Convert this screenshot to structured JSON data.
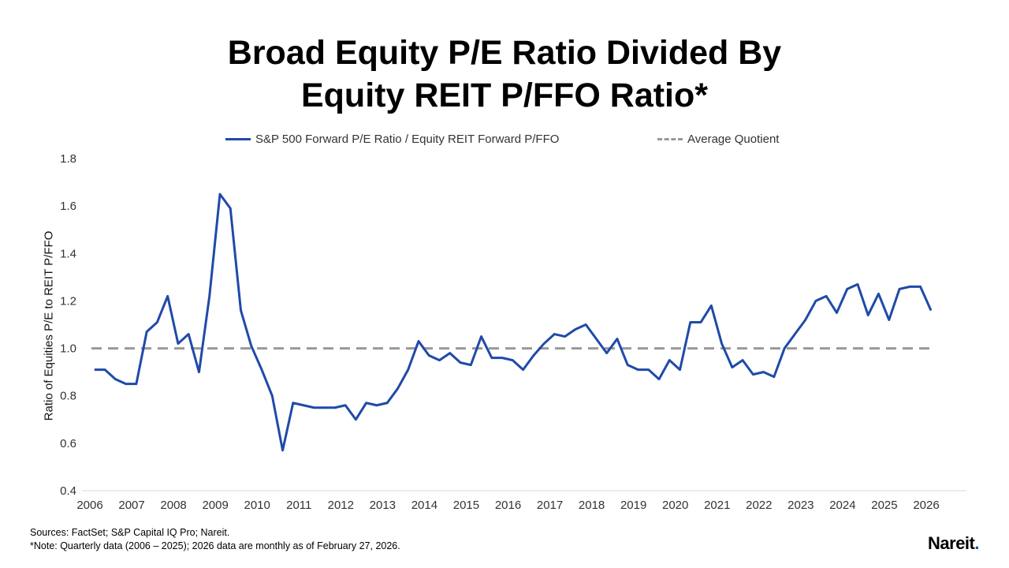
{
  "chart_data": {
    "type": "line",
    "title_line1": "Broad Equity P/E Ratio Divided By",
    "title_line2": "Equity REIT P/FFO Ratio*",
    "ylabel": "Ratio of Equities P/E to REIT P/FFO",
    "ylim": [
      0.4,
      1.8
    ],
    "yticks": [
      "0.4",
      "0.6",
      "0.8",
      "1.0",
      "1.2",
      "1.4",
      "1.6",
      "1.8"
    ],
    "xticks": [
      "2006",
      "2007",
      "2008",
      "2009",
      "2010",
      "2011",
      "2012",
      "2013",
      "2014",
      "2015",
      "2016",
      "2017",
      "2018",
      "2019",
      "2020",
      "2021",
      "2022",
      "2023",
      "2024",
      "2025",
      "2026"
    ],
    "xlim": [
      2006,
      2026
    ],
    "grid": false,
    "legend_placement": "top",
    "series": [
      {
        "name": "S&P 500 Forward P/E Ratio / Equity REIT Forward P/FFO",
        "color": "#1F4AA8",
        "x": [
          "2006 Q1",
          "2006 Q2",
          "2006 Q3",
          "2006 Q4",
          "2007 Q1",
          "2007 Q2",
          "2007 Q3",
          "2007 Q4",
          "2008 Q1",
          "2008 Q2",
          "2008 Q3",
          "2008 Q4",
          "2009 Q1",
          "2009 Q2",
          "2009 Q3",
          "2009 Q4",
          "2010 Q1",
          "2010 Q2",
          "2010 Q3",
          "2010 Q4",
          "2011 Q1",
          "2011 Q2",
          "2011 Q3",
          "2011 Q4",
          "2012 Q1",
          "2012 Q2",
          "2012 Q3",
          "2012 Q4",
          "2013 Q1",
          "2013 Q2",
          "2013 Q3",
          "2013 Q4",
          "2014 Q1",
          "2014 Q2",
          "2014 Q3",
          "2014 Q4",
          "2015 Q1",
          "2015 Q2",
          "2015 Q3",
          "2015 Q4",
          "2016 Q1",
          "2016 Q2",
          "2016 Q3",
          "2016 Q4",
          "2017 Q1",
          "2017 Q2",
          "2017 Q3",
          "2017 Q4",
          "2018 Q1",
          "2018 Q2",
          "2018 Q3",
          "2018 Q4",
          "2019 Q1",
          "2019 Q2",
          "2019 Q3",
          "2019 Q4",
          "2020 Q1",
          "2020 Q2",
          "2020 Q3",
          "2020 Q4",
          "2021 Q1",
          "2021 Q2",
          "2021 Q3",
          "2021 Q4",
          "2022 Q1",
          "2022 Q2",
          "2022 Q3",
          "2022 Q4",
          "2023 Q1",
          "2023 Q2",
          "2023 Q3",
          "2023 Q4",
          "2024 Q1",
          "2024 Q2",
          "2024 Q3",
          "2024 Q4",
          "2025 Q1",
          "2025 Q2",
          "2025 Q3",
          "2025 Q4",
          "2026-02-27"
        ],
        "values": [
          0.91,
          0.91,
          0.87,
          0.85,
          0.85,
          1.07,
          1.11,
          1.22,
          1.02,
          1.06,
          0.9,
          1.22,
          1.65,
          1.59,
          1.16,
          1.01,
          0.91,
          0.8,
          0.57,
          0.77,
          0.76,
          0.75,
          0.75,
          0.75,
          0.76,
          0.7,
          0.77,
          0.76,
          0.77,
          0.83,
          0.91,
          1.03,
          0.97,
          0.95,
          0.98,
          0.94,
          0.93,
          1.05,
          0.96,
          0.96,
          0.95,
          0.91,
          0.97,
          1.02,
          1.06,
          1.05,
          1.08,
          1.1,
          1.04,
          0.98,
          1.04,
          0.93,
          0.91,
          0.91,
          0.87,
          0.95,
          0.91,
          1.11,
          1.11,
          1.18,
          1.02,
          0.92,
          0.95,
          0.89,
          0.9,
          0.88,
          1.0,
          1.06,
          1.12,
          1.2,
          1.22,
          1.15,
          1.25,
          1.27,
          1.14,
          1.23,
          1.12,
          1.25,
          1.26,
          1.26,
          1.16
        ]
      },
      {
        "name": "Average Quotient",
        "color": "#999999",
        "style": "dashed",
        "value": 1.0
      }
    ]
  },
  "footer": {
    "sources": "Sources: FactSet; S&P Capital IQ Pro; Nareit.",
    "note": "*Note: Quarterly data (2006 – 2025); 2026 data are monthly as of February 27, 2026."
  },
  "logo": {
    "text": "Nareit."
  }
}
